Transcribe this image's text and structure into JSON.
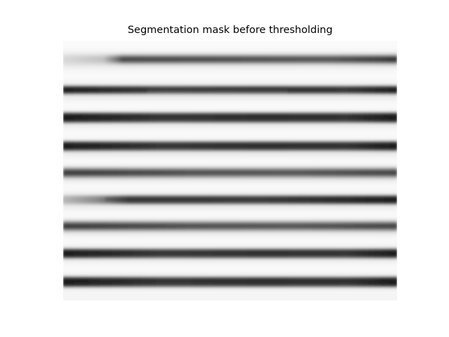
{
  "figure": {
    "title": "Segmentation mask before thresholding"
  },
  "image": {
    "description_kind": "grayscale segmentation mask",
    "stripe_count": 9,
    "background_color": "#ffffff",
    "stripe_color_dark": "#2a2a2a",
    "stripe_color_mid": "#5a5a5a"
  }
}
